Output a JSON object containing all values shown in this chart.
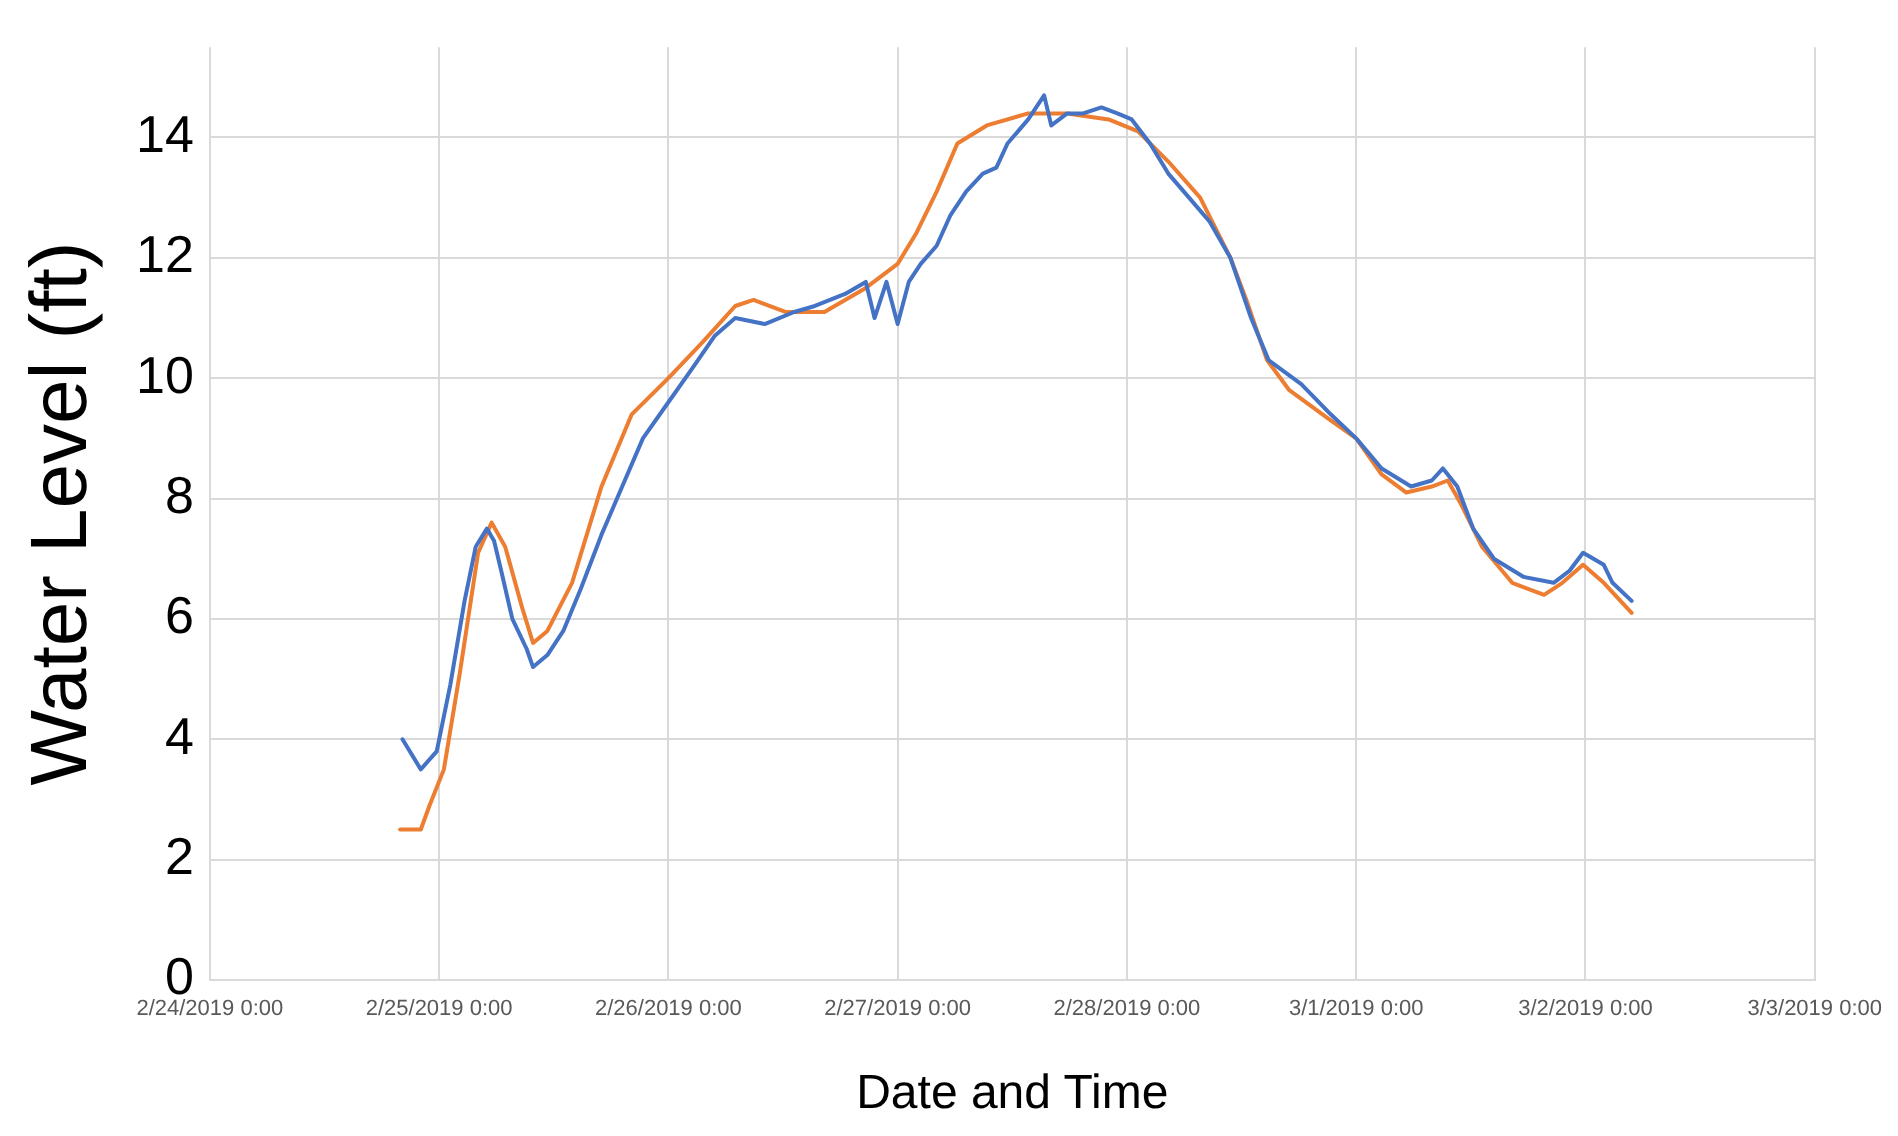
{
  "chart_data": {
    "type": "line",
    "xlabel": "Date and Time",
    "ylabel": "Water Level (ft)",
    "xlim": [
      "2019-02-24T00:00",
      "2019-03-03T00:00"
    ],
    "xticks": [
      {
        "value": "2019-02-24T00:00",
        "label": "2/24/2019 0:00"
      },
      {
        "value": "2019-02-25T00:00",
        "label": "2/25/2019 0:00"
      },
      {
        "value": "2019-02-26T00:00",
        "label": "2/26/2019 0:00"
      },
      {
        "value": "2019-02-27T00:00",
        "label": "2/27/2019 0:00"
      },
      {
        "value": "2019-02-28T00:00",
        "label": "2/28/2019 0:00"
      },
      {
        "value": "2019-03-01T00:00",
        "label": "3/1/2019 0:00"
      },
      {
        "value": "2019-03-02T00:00",
        "label": "3/2/2019 0:00"
      },
      {
        "value": "2019-03-03T00:00",
        "label": "3/3/2019 0:00"
      }
    ],
    "ylim": [
      0,
      15.5
    ],
    "yticks": [
      0,
      2,
      4,
      6,
      8,
      10,
      12,
      14
    ],
    "grid": true,
    "legend": false,
    "marker": "none",
    "line_style": "solid",
    "series": [
      {
        "color": "#4472c4",
        "x": [
          "2019-02-24T20:10",
          "2019-02-24T22:05",
          "2019-02-24T23:45",
          "2019-02-25T01:10",
          "2019-02-25T02:40",
          "2019-02-25T03:50",
          "2019-02-25T05:00",
          "2019-02-25T05:45",
          "2019-02-25T06:30",
          "2019-02-25T07:40",
          "2019-02-25T09:10",
          "2019-02-25T09:50",
          "2019-02-25T11:20",
          "2019-02-25T13:00",
          "2019-02-25T14:50",
          "2019-02-25T17:00",
          "2019-02-25T19:10",
          "2019-02-25T21:20",
          "2019-02-26T00:00",
          "2019-02-26T02:40",
          "2019-02-26T04:50",
          "2019-02-26T07:00",
          "2019-02-26T10:05",
          "2019-02-26T13:10",
          "2019-02-26T15:20",
          "2019-02-26T18:30",
          "2019-02-26T20:40",
          "2019-02-26T21:35",
          "2019-02-26T22:50",
          "2019-02-27T00:00",
          "2019-02-27T01:10",
          "2019-02-27T02:25",
          "2019-02-27T04:05",
          "2019-02-27T05:30",
          "2019-02-27T07:10",
          "2019-02-27T08:55",
          "2019-02-27T10:20",
          "2019-02-27T11:30",
          "2019-02-27T13:40",
          "2019-02-27T15:20",
          "2019-02-27T16:05",
          "2019-02-27T17:45",
          "2019-02-27T19:25",
          "2019-02-27T21:20",
          "2019-02-27T23:00",
          "2019-02-28T00:30",
          "2019-02-28T02:25",
          "2019-02-28T04:20",
          "2019-02-28T06:30",
          "2019-02-28T08:40",
          "2019-02-28T10:50",
          "2019-02-28T13:00",
          "2019-02-28T14:50",
          "2019-02-28T18:15",
          "2019-02-28T21:20",
          "2019-03-01T00:00",
          "2019-03-01T02:40",
          "2019-03-01T05:45",
          "2019-03-01T07:55",
          "2019-03-01T09:05",
          "2019-03-01T10:35",
          "2019-03-01T12:15",
          "2019-03-01T14:25",
          "2019-03-01T17:30",
          "2019-03-01T20:40",
          "2019-03-01T22:20",
          "2019-03-01T23:45",
          "2019-03-02T01:55",
          "2019-03-02T02:50",
          "2019-03-02T04:50"
        ],
        "values": [
          4.0,
          3.5,
          3.8,
          4.9,
          6.3,
          7.2,
          7.5,
          7.3,
          6.8,
          6.0,
          5.5,
          5.2,
          5.4,
          5.8,
          6.5,
          7.4,
          8.2,
          9.0,
          9.6,
          10.2,
          10.7,
          11.0,
          10.9,
          11.1,
          11.2,
          11.4,
          11.6,
          11.0,
          11.6,
          10.9,
          11.6,
          11.9,
          12.2,
          12.7,
          13.1,
          13.4,
          13.5,
          13.9,
          14.3,
          14.7,
          14.2,
          14.4,
          14.4,
          14.5,
          14.4,
          14.3,
          13.9,
          13.4,
          13.0,
          12.6,
          12.0,
          11.0,
          10.3,
          9.9,
          9.4,
          9.0,
          8.5,
          8.2,
          8.3,
          8.5,
          8.2,
          7.5,
          7.0,
          6.7,
          6.6,
          6.8,
          7.1,
          6.9,
          6.6,
          6.3
        ]
      },
      {
        "color": "#ed7d31",
        "x": [
          "2019-02-24T19:55",
          "2019-02-24T22:05",
          "2019-02-24T23:00",
          "2019-02-25T00:30",
          "2019-02-25T02:10",
          "2019-02-25T04:05",
          "2019-02-25T05:30",
          "2019-02-25T06:55",
          "2019-02-25T08:40",
          "2019-02-25T09:50",
          "2019-02-25T11:20",
          "2019-02-25T13:55",
          "2019-02-25T17:00",
          "2019-02-25T20:10",
          "2019-02-26T00:00",
          "2019-02-26T03:35",
          "2019-02-26T07:00",
          "2019-02-26T08:55",
          "2019-02-26T12:15",
          "2019-02-26T16:20",
          "2019-02-26T20:40",
          "2019-02-27T00:00",
          "2019-02-27T01:55",
          "2019-02-27T04:05",
          "2019-02-27T06:15",
          "2019-02-27T09:20",
          "2019-02-27T13:40",
          "2019-02-27T17:45",
          "2019-02-27T22:05",
          "2019-02-28T01:10",
          "2019-02-28T04:20",
          "2019-02-28T07:40",
          "2019-02-28T10:50",
          "2019-02-28T12:30",
          "2019-02-28T14:40",
          "2019-02-28T17:00",
          "2019-02-28T21:20",
          "2019-03-01T00:00",
          "2019-03-01T02:40",
          "2019-03-01T05:15",
          "2019-03-01T07:55",
          "2019-03-01T09:35",
          "2019-03-01T11:00",
          "2019-03-01T13:10",
          "2019-03-01T16:20",
          "2019-03-01T19:40",
          "2019-03-01T21:35",
          "2019-03-01T23:45",
          "2019-03-02T01:55",
          "2019-03-02T04:50"
        ],
        "values": [
          2.5,
          2.5,
          2.9,
          3.5,
          5.1,
          7.1,
          7.6,
          7.2,
          6.2,
          5.6,
          5.8,
          6.6,
          8.2,
          9.4,
          10.0,
          10.6,
          11.2,
          11.3,
          11.1,
          11.1,
          11.5,
          11.9,
          12.4,
          13.1,
          13.9,
          14.2,
          14.4,
          14.4,
          14.3,
          14.1,
          13.6,
          13.0,
          12.0,
          11.3,
          10.3,
          9.8,
          9.3,
          9.0,
          8.4,
          8.1,
          8.2,
          8.3,
          7.9,
          7.2,
          6.6,
          6.4,
          6.6,
          6.9,
          6.6,
          6.1
        ]
      }
    ]
  }
}
